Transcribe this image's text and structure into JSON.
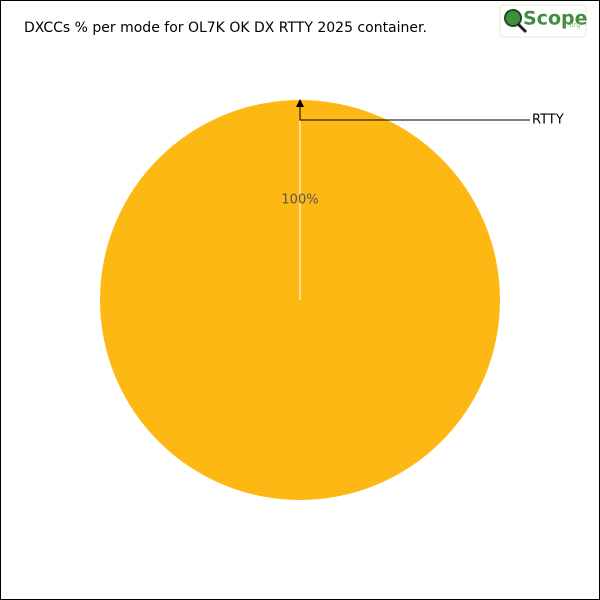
{
  "chart_data": {
    "type": "pie",
    "title": "DXCCs % per mode for OL7K OK DX RTTY 2025 container.",
    "categories": [
      "RTTY"
    ],
    "values": [
      100
    ],
    "value_labels": [
      "100%"
    ],
    "colors": [
      "#fdb813"
    ]
  },
  "logo": {
    "text": "Scope",
    "suffix": ".org"
  }
}
